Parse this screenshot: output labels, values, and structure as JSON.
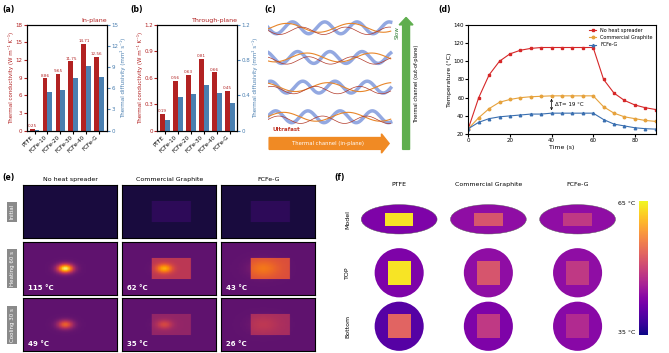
{
  "chart_data": [
    {
      "panel": "(a)",
      "type": "bar",
      "title": "In-plane",
      "categories": [
        "PTFE",
        "FCFe-10",
        "FCFe-20",
        "FCFe-30",
        "FCFe-40",
        "FCFe-G"
      ],
      "series": [
        {
          "color": "#b22222",
          "values": [
            0.25,
            8.86,
            9.65,
            11.75,
            14.71,
            12.56
          ],
          "data_labels": true
        },
        {
          "color": "#4a7fb0",
          "values": [
            0.11,
            5.42,
            5.81,
            7.48,
            9.14,
            7.61
          ],
          "axis": "y2"
        }
      ],
      "y_label": "Thermal conductivity (W m⁻¹ K⁻¹)",
      "y2_label": "Thermal diffusivity (mm² s⁻¹)",
      "ylim": [
        0,
        18
      ],
      "yticks": [
        0,
        3,
        6,
        9,
        12,
        15,
        18
      ],
      "y2lim": [
        0,
        15
      ],
      "y2ticks": [
        0,
        3,
        6,
        9,
        12,
        15
      ]
    },
    {
      "panel": "(b)",
      "type": "bar",
      "title": "Through-plane",
      "categories": [
        "PTFE",
        "FCFe-10",
        "FCFe-20",
        "FCFe-30",
        "FCFe-40",
        "FCFe-G"
      ],
      "series": [
        {
          "color": "#b22222",
          "values": [
            0.19,
            0.56,
            0.63,
            0.81,
            0.66,
            0.45
          ],
          "data_labels": true
        },
        {
          "color": "#4a7fb0",
          "values": [
            0.12,
            0.38,
            0.41,
            0.52,
            0.43,
            0.31
          ],
          "axis": "y2"
        }
      ],
      "y_label": "Thermal conductivity (W m⁻¹ K⁻¹)",
      "y2_label": "Thermal diffusivity (mm² s⁻¹)",
      "ylim": [
        0,
        1.2
      ],
      "yticks": [
        0,
        0.3,
        0.6,
        0.9,
        1.2
      ],
      "y2lim": [
        0,
        1.2
      ],
      "y2ticks": [
        0,
        0.4,
        0.8,
        1.2
      ]
    },
    {
      "panel": "(d)",
      "type": "line",
      "x": [
        0,
        5,
        10,
        15,
        20,
        25,
        30,
        35,
        40,
        45,
        50,
        55,
        60,
        65,
        70,
        75,
        80,
        85,
        90
      ],
      "series": [
        {
          "name": "No heat spreader",
          "color": "#d62728",
          "marker": "square",
          "values": [
            26,
            60,
            85,
            100,
            108,
            112,
            114,
            115,
            115,
            115,
            115,
            115,
            115,
            80,
            65,
            57,
            52,
            49,
            47
          ]
        },
        {
          "name": "Commercial Graphite",
          "color": "#e6a23c",
          "marker": "circle",
          "values": [
            26,
            38,
            48,
            55,
            58,
            60,
            61,
            61.5,
            62,
            62,
            62,
            62,
            62,
            50,
            43,
            39,
            37,
            35,
            34
          ]
        },
        {
          "name": "FCFe-G",
          "color": "#3a6fb0",
          "marker": "triangle",
          "values": [
            26,
            33,
            37,
            39,
            40,
            41,
            42,
            42,
            43,
            43,
            43,
            43,
            43,
            36,
            31,
            29,
            27,
            26,
            25.5
          ]
        }
      ],
      "x_label": "Time (s)",
      "y_label": "Temperature (°C)",
      "xlim": [
        0,
        90
      ],
      "xticks": [
        0,
        20,
        40,
        60,
        80
      ],
      "ylim": [
        20,
        140
      ],
      "yticks": [
        20,
        40,
        60,
        80,
        100,
        120,
        140
      ],
      "legend": "upper right",
      "annotation": "ΔT= 19 °C"
    }
  ],
  "panels": {
    "c": {
      "panel": "(c)",
      "in_plane_speed": "Ultrafast",
      "in_plane": "Thermal channel (in-plane)",
      "out_of_plane_speed": "Slow",
      "out_of_plane": "Thermal channel (out-of-plane)"
    },
    "e": {
      "panel": "(e)",
      "columns": [
        "No heat spreader",
        "Commercial Graphite",
        "FCFe-G"
      ],
      "rows": [
        {
          "label": "Initial"
        },
        {
          "label": "Heating 60 s",
          "readings": [
            "115 °C",
            "62 °C",
            "43 °C"
          ]
        },
        {
          "label": "Cooling 30 s",
          "readings": [
            "49 °C",
            "35 °C",
            "26 °C"
          ]
        }
      ]
    },
    "f": {
      "panel": "(f)",
      "columns": [
        "PTFE",
        "Commercial Graphite",
        "FCFe-G"
      ],
      "rows": [
        "Model",
        "TOP",
        "Bottom"
      ],
      "colorbar": {
        "top": "65 °C",
        "bottom": "35 °C"
      }
    }
  }
}
